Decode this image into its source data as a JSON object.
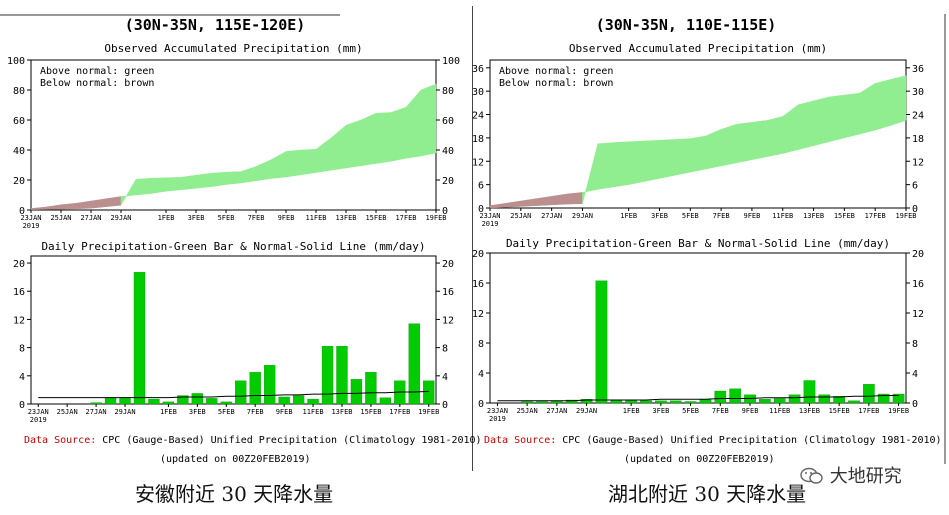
{
  "panels": [
    {
      "region": "(30N-35N, 115E-120E)",
      "caption": "安徽附近 30 天降水量",
      "accum": {
        "title": "Observed Accumulated Precipitation (mm)",
        "legend": [
          "Above normal: green",
          "Below normal: brown"
        ],
        "ylim": [
          0,
          100
        ],
        "yticks": [
          0,
          20,
          40,
          60,
          80,
          100
        ]
      },
      "daily": {
        "title": "Daily Precipitation-Green Bar & Normal-Solid Line (mm/day)",
        "ylim": [
          0,
          21
        ],
        "yticks": [
          0,
          4,
          8,
          12,
          16,
          20
        ]
      },
      "source": "Data Source: CPC (Gauge-Based) Unified Precipitation (Climatology 1981-2010)",
      "updated": "(updated on 00Z20FEB2019)"
    },
    {
      "region": "(30N-35N, 110E-115E)",
      "caption": "湖北附近 30 天降水量",
      "accum": {
        "title": "Observed Accumulated Precipitation (mm)",
        "legend": [
          "Above normal: green",
          "Below normal: brown"
        ],
        "ylim": [
          0,
          38
        ],
        "yticks": [
          0,
          6,
          12,
          18,
          24,
          30,
          36
        ]
      },
      "daily": {
        "title": "Daily Precipitation-Green Bar & Normal-Solid Line (mm/day)",
        "ylim": [
          0,
          20
        ],
        "yticks": [
          0,
          4,
          8,
          12,
          16,
          20
        ]
      },
      "source": "Data Source: CPC (Gauge-Based) Unified Precipitation (Climatology 1981-2010)",
      "updated": "(updated on 00Z20FEB2019)"
    }
  ],
  "watermark": "大地研究",
  "colors": {
    "above": "#90ee90",
    "below": "#bc8f8f",
    "bar": "#00cc00",
    "source": "#cc0000"
  },
  "chart_data": [
    {
      "type": "area",
      "x": [
        "23JAN",
        "24JAN",
        "25JAN",
        "26JAN",
        "27JAN",
        "28JAN",
        "29JAN",
        "30JAN",
        "31JAN",
        "1FEB",
        "2FEB",
        "3FEB",
        "4FEB",
        "5FEB",
        "6FEB",
        "7FEB",
        "8FEB",
        "9FEB",
        "10FEB",
        "11FEB",
        "12FEB",
        "13FEB",
        "14FEB",
        "15FEB",
        "16FEB",
        "17FEB",
        "18FEB",
        "19FEB"
      ],
      "xticks": [
        "23JAN\n2019",
        "25JAN",
        "27JAN",
        "29JAN",
        "1FEB",
        "3FEB",
        "5FEB",
        "7FEB",
        "9FEB",
        "11FEB",
        "13FEB",
        "15FEB",
        "17FEB",
        "19FEB"
      ],
      "series": [
        {
          "name": "observed",
          "values": [
            0.2,
            0.4,
            0.6,
            0.8,
            1.2,
            2.2,
            3.2,
            20.5,
            21.2,
            21.5,
            21.8,
            23.2,
            24.5,
            25.2,
            25.6,
            29.0,
            33.5,
            39.0,
            40.0,
            40.5,
            48.0,
            56.5,
            60.0,
            64.5,
            65.0,
            68.5,
            80.0,
            84.0
          ]
        },
        {
          "name": "normal",
          "values": [
            1.0,
            2.0,
            3.5,
            4.5,
            6.0,
            7.5,
            9.0,
            10.0,
            11.0,
            12.5,
            13.5,
            14.5,
            15.5,
            17.0,
            18.0,
            19.5,
            21.0,
            22.0,
            23.5,
            25.0,
            26.5,
            28.0,
            29.5,
            31.0,
            32.5,
            34.5,
            36.0,
            38.0
          ]
        }
      ],
      "ylim": [
        0,
        100
      ]
    },
    {
      "type": "bar",
      "categories": [
        "23JAN",
        "24JAN",
        "25JAN",
        "26JAN",
        "27JAN",
        "28JAN",
        "29JAN",
        "30JAN",
        "31JAN",
        "1FEB",
        "2FEB",
        "3FEB",
        "4FEB",
        "5FEB",
        "6FEB",
        "7FEB",
        "8FEB",
        "9FEB",
        "10FEB",
        "11FEB",
        "12FEB",
        "13FEB",
        "14FEB",
        "15FEB",
        "16FEB",
        "17FEB",
        "18FEB",
        "19FEB"
      ],
      "series": [
        {
          "name": "daily",
          "values": [
            0,
            0,
            0,
            0,
            0.2,
            0.9,
            0.8,
            18.7,
            0.7,
            0.3,
            1.2,
            1.5,
            0.8,
            0.3,
            3.3,
            4.5,
            5.5,
            1.0,
            1.2,
            0.7,
            8.2,
            8.2,
            3.5,
            4.5,
            0.9,
            3.3,
            11.4,
            3.3
          ]
        },
        {
          "name": "normal",
          "values": [
            0.9,
            0.9,
            0.9,
            0.9,
            0.9,
            0.9,
            0.9,
            0.9,
            0.9,
            0.9,
            1.0,
            1.0,
            1.0,
            1.1,
            1.1,
            1.2,
            1.2,
            1.3,
            1.3,
            1.4,
            1.4,
            1.5,
            1.5,
            1.6,
            1.6,
            1.7,
            1.7,
            1.8
          ]
        }
      ],
      "ylim": [
        0,
        21
      ]
    },
    {
      "type": "area",
      "x": [
        "23JAN",
        "24JAN",
        "25JAN",
        "26JAN",
        "27JAN",
        "28JAN",
        "29JAN",
        "30JAN",
        "31JAN",
        "1FEB",
        "2FEB",
        "3FEB",
        "4FEB",
        "5FEB",
        "6FEB",
        "7FEB",
        "8FEB",
        "9FEB",
        "10FEB",
        "11FEB",
        "12FEB",
        "13FEB",
        "14FEB",
        "15FEB",
        "16FEB",
        "17FEB",
        "18FEB",
        "19FEB"
      ],
      "xticks": [
        "23JAN\n2019",
        "25JAN",
        "27JAN",
        "29JAN",
        "1FEB",
        "3FEB",
        "5FEB",
        "7FEB",
        "9FEB",
        "11FEB",
        "13FEB",
        "15FEB",
        "17FEB",
        "19FEB"
      ],
      "series": [
        {
          "name": "observed",
          "values": [
            0,
            0.2,
            0.4,
            0.6,
            0.8,
            1.0,
            1.1,
            16.5,
            16.8,
            17.0,
            17.2,
            17.4,
            17.6,
            17.8,
            18.5,
            20.2,
            21.5,
            22.0,
            22.5,
            23.5,
            26.5,
            27.5,
            28.5,
            29.0,
            29.5,
            32.0,
            33.0,
            34.0
          ]
        },
        {
          "name": "normal",
          "values": [
            0.6,
            1.2,
            1.8,
            2.4,
            3.0,
            3.6,
            4.0,
            4.8,
            5.4,
            6.0,
            6.8,
            7.6,
            8.4,
            9.2,
            10.0,
            10.8,
            11.6,
            12.4,
            13.2,
            14.0,
            15.0,
            16.0,
            17.0,
            18.0,
            19.0,
            20.0,
            21.2,
            22.5
          ]
        }
      ],
      "ylim": [
        0,
        38
      ]
    },
    {
      "type": "bar",
      "categories": [
        "23JAN",
        "24JAN",
        "25JAN",
        "26JAN",
        "27JAN",
        "28JAN",
        "29JAN",
        "30JAN",
        "31JAN",
        "1FEB",
        "2FEB",
        "3FEB",
        "4FEB",
        "5FEB",
        "6FEB",
        "7FEB",
        "8FEB",
        "9FEB",
        "10FEB",
        "11FEB",
        "12FEB",
        "13FEB",
        "14FEB",
        "15FEB",
        "16FEB",
        "17FEB",
        "18FEB",
        "19FEB"
      ],
      "series": [
        {
          "name": "daily",
          "values": [
            0,
            0,
            0.2,
            0.2,
            0.3,
            0.4,
            0.5,
            16.3,
            0.4,
            0.3,
            0.3,
            0.3,
            0.3,
            0.2,
            0.5,
            1.6,
            1.9,
            1.1,
            0.5,
            0.6,
            1.1,
            3.0,
            1.1,
            0.9,
            0.3,
            2.5,
            1.2,
            1.2
          ]
        },
        {
          "name": "normal",
          "values": [
            0.3,
            0.3,
            0.3,
            0.3,
            0.3,
            0.3,
            0.4,
            0.4,
            0.4,
            0.4,
            0.4,
            0.5,
            0.5,
            0.5,
            0.5,
            0.6,
            0.6,
            0.6,
            0.7,
            0.7,
            0.7,
            0.8,
            0.8,
            0.8,
            0.9,
            0.9,
            1.0,
            1.0
          ]
        }
      ],
      "ylim": [
        0,
        20
      ]
    }
  ]
}
